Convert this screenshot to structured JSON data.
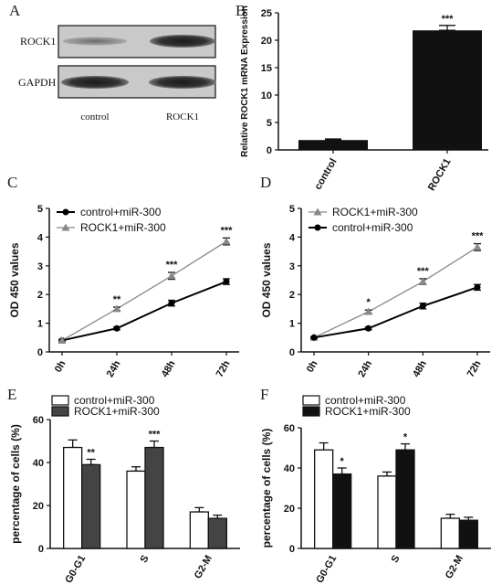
{
  "panels": {
    "a": {
      "label": "A"
    },
    "b": {
      "label": "B"
    },
    "c": {
      "label": "C"
    },
    "d": {
      "label": "D"
    },
    "e": {
      "label": "E"
    },
    "f": {
      "label": "F"
    }
  },
  "blot": {
    "rows": [
      "ROCK1",
      "GAPDH"
    ],
    "lanes": [
      "control",
      "ROCK1"
    ]
  },
  "chart_data": [
    {
      "id": "B",
      "type": "bar",
      "categories": [
        "control",
        "ROCK1"
      ],
      "values": [
        1.8,
        21.8
      ],
      "errors": [
        0.2,
        0.9
      ],
      "annotations": [
        "",
        "***"
      ],
      "ylabel": "Relative ROCK1 mRNA Expression",
      "ylim": [
        0,
        25
      ],
      "yticks": [
        0,
        5,
        10,
        15,
        20,
        25
      ],
      "colors": [
        "#111111",
        "#111111"
      ]
    },
    {
      "id": "C",
      "type": "line",
      "x": [
        "0h",
        "24h",
        "48h",
        "72h"
      ],
      "ylabel": "OD 450 values",
      "ylim": [
        0,
        5
      ],
      "yticks": [
        0,
        1,
        2,
        3,
        4,
        5
      ],
      "legend": "top-left",
      "series": [
        {
          "name": "control+miR-300",
          "values": [
            0.4,
            0.82,
            1.7,
            2.45
          ],
          "errors": [
            0.03,
            0.05,
            0.1,
            0.1
          ],
          "color": "#000000",
          "marker": "circle"
        },
        {
          "name": "ROCK1+miR-300",
          "values": [
            0.4,
            1.5,
            2.65,
            3.85
          ],
          "errors": [
            0.03,
            0.06,
            0.12,
            0.12
          ],
          "color": "#888888",
          "marker": "triangle"
        }
      ],
      "annotations": [
        "",
        "**",
        "***",
        "***"
      ]
    },
    {
      "id": "D",
      "type": "line",
      "x": [
        "0h",
        "24h",
        "48h",
        "72h"
      ],
      "ylabel": "OD 450 values",
      "ylim": [
        0,
        5
      ],
      "yticks": [
        0,
        1,
        2,
        3,
        4,
        5
      ],
      "legend": "top-left",
      "series": [
        {
          "name": "ROCK1+miR-300",
          "values": [
            0.5,
            1.4,
            2.45,
            3.65
          ],
          "errors": [
            0.03,
            0.06,
            0.1,
            0.12
          ],
          "color": "#888888",
          "marker": "triangle"
        },
        {
          "name": "control+miR-300",
          "values": [
            0.5,
            0.82,
            1.6,
            2.25
          ],
          "errors": [
            0.03,
            0.05,
            0.1,
            0.1
          ],
          "color": "#000000",
          "marker": "circle"
        }
      ],
      "annotations": [
        "",
        "*",
        "***",
        "***"
      ]
    },
    {
      "id": "E",
      "type": "bar",
      "categories": [
        "G0-G1",
        "S",
        "G2-M"
      ],
      "ylabel": "percentage of cells (%)",
      "ylim": [
        0,
        60
      ],
      "yticks": [
        0,
        20,
        40,
        60
      ],
      "legend": "top-left",
      "series": [
        {
          "name": "control+miR-300",
          "values": [
            47,
            36,
            17
          ],
          "errors": [
            3.5,
            2,
            2
          ],
          "color": "#ffffff"
        },
        {
          "name": "ROCK1+miR-300",
          "values": [
            39,
            47,
            14
          ],
          "errors": [
            2.5,
            3,
            1.5
          ],
          "color": "#444444"
        }
      ],
      "annotations": [
        "**",
        "***",
        ""
      ]
    },
    {
      "id": "F",
      "type": "bar",
      "categories": [
        "G0-G1",
        "S",
        "G2-M"
      ],
      "ylabel": "percentage of cells (%)",
      "ylim": [
        0,
        60
      ],
      "yticks": [
        0,
        20,
        40,
        60
      ],
      "legend": "top-left",
      "series": [
        {
          "name": "control+miR-300",
          "values": [
            49,
            36,
            15
          ],
          "errors": [
            3.5,
            2,
            2
          ],
          "color": "#ffffff"
        },
        {
          "name": "ROCK1+miR-300",
          "values": [
            37,
            49,
            14
          ],
          "errors": [
            3,
            3,
            1.5
          ],
          "color": "#111111"
        }
      ],
      "annotations": [
        "*",
        "*",
        ""
      ]
    }
  ]
}
